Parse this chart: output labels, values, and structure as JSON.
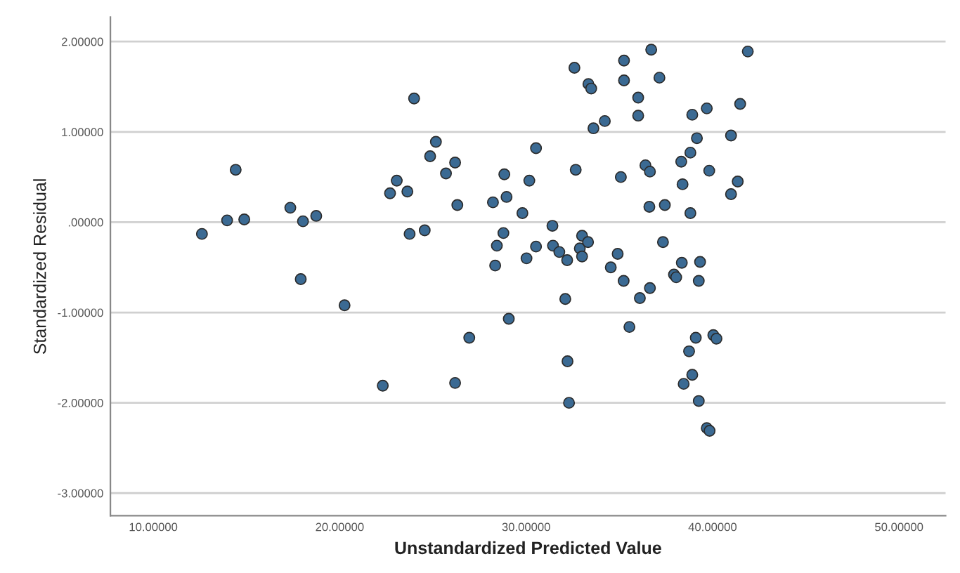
{
  "chart_data": {
    "type": "scatter",
    "xlabel": "Unstandardized Predicted Value",
    "ylabel": "Standardized Residual",
    "x": [
      12.61,
      13.96,
      14.42,
      14.88,
      17.35,
      18.03,
      18.74,
      17.91,
      20.26,
      22.31,
      22.7,
      23.06,
      23.63,
      23.75,
      23.99,
      24.56,
      24.85,
      25.16,
      25.7,
      26.19,
      26.31,
      26.19,
      26.95,
      28.22,
      28.43,
      28.34,
      28.78,
      28.83,
      28.95,
      29.07,
      29.8,
      30.02,
      30.17,
      30.53,
      30.53,
      31.41,
      31.44,
      31.78,
      32.1,
      32.2,
      32.22,
      32.3,
      32.59,
      32.66,
      32.88,
      33.0,
      33.0,
      33.32,
      33.34,
      33.49,
      33.61,
      34.22,
      34.54,
      34.91,
      35.08,
      35.23,
      35.25,
      35.25,
      35.54,
      36.01,
      36.01,
      36.1,
      36.4,
      36.64,
      36.64,
      36.61,
      36.71,
      37.15,
      37.34,
      37.44,
      37.93,
      38.05,
      38.35,
      38.32,
      38.39,
      38.45,
      38.74,
      38.81,
      38.81,
      38.91,
      38.91,
      39.1,
      39.16,
      39.26,
      39.26,
      39.33,
      39.69,
      39.69,
      39.84,
      39.82,
      40.04,
      40.21,
      40.99,
      40.99,
      41.35,
      41.48,
      41.89
    ],
    "series": [
      {
        "color": "#3b6a93",
        "values": [
          -0.13,
          0.02,
          0.58,
          0.03,
          0.16,
          0.01,
          0.07,
          -0.63,
          -0.92,
          -1.81,
          0.32,
          0.46,
          0.34,
          -0.13,
          1.37,
          -0.09,
          0.73,
          0.89,
          0.54,
          0.66,
          0.19,
          -1.78,
          -1.28,
          0.22,
          -0.26,
          -0.48,
          -0.12,
          0.53,
          0.28,
          -1.07,
          0.1,
          -0.4,
          0.46,
          -0.27,
          0.82,
          -0.04,
          -0.26,
          -0.33,
          -0.85,
          -0.42,
          -1.54,
          -2.0,
          1.71,
          0.58,
          -0.29,
          -0.15,
          -0.38,
          -0.22,
          1.53,
          1.48,
          1.04,
          1.12,
          -0.5,
          -0.35,
          0.5,
          -0.65,
          1.79,
          1.57,
          -1.16,
          1.38,
          1.18,
          -0.84,
          0.63,
          0.56,
          -0.73,
          0.17,
          1.91,
          1.6,
          -0.22,
          0.19,
          -0.58,
          -0.61,
          -0.45,
          0.67,
          0.42,
          -1.79,
          -1.43,
          0.77,
          0.1,
          -1.69,
          1.19,
          -1.28,
          0.93,
          -1.98,
          -0.65,
          -0.44,
          1.26,
          -2.28,
          -2.31,
          0.57,
          -1.25,
          -1.29,
          0.31,
          0.96,
          0.45,
          1.31,
          1.89
        ]
      }
    ],
    "xlim": [
      7.7,
      52.5
    ],
    "ylim": [
      -3.25,
      2.27
    ],
    "xticks": [
      {
        "value": 10,
        "label": "10.00000"
      },
      {
        "value": 20,
        "label": "20.00000"
      },
      {
        "value": 30,
        "label": "30.00000"
      },
      {
        "value": 40,
        "label": "40.00000"
      },
      {
        "value": 50,
        "label": "50.00000"
      }
    ],
    "yticks": [
      {
        "value": -3,
        "label": "-3.00000"
      },
      {
        "value": -2,
        "label": "-2.00000"
      },
      {
        "value": -1,
        "label": "-1.00000"
      },
      {
        "value": 0,
        "label": ".00000"
      },
      {
        "value": 1,
        "label": "1.00000"
      },
      {
        "value": 2,
        "label": "2.00000"
      }
    ],
    "grid": "y",
    "marker": "circle",
    "legend": false
  }
}
